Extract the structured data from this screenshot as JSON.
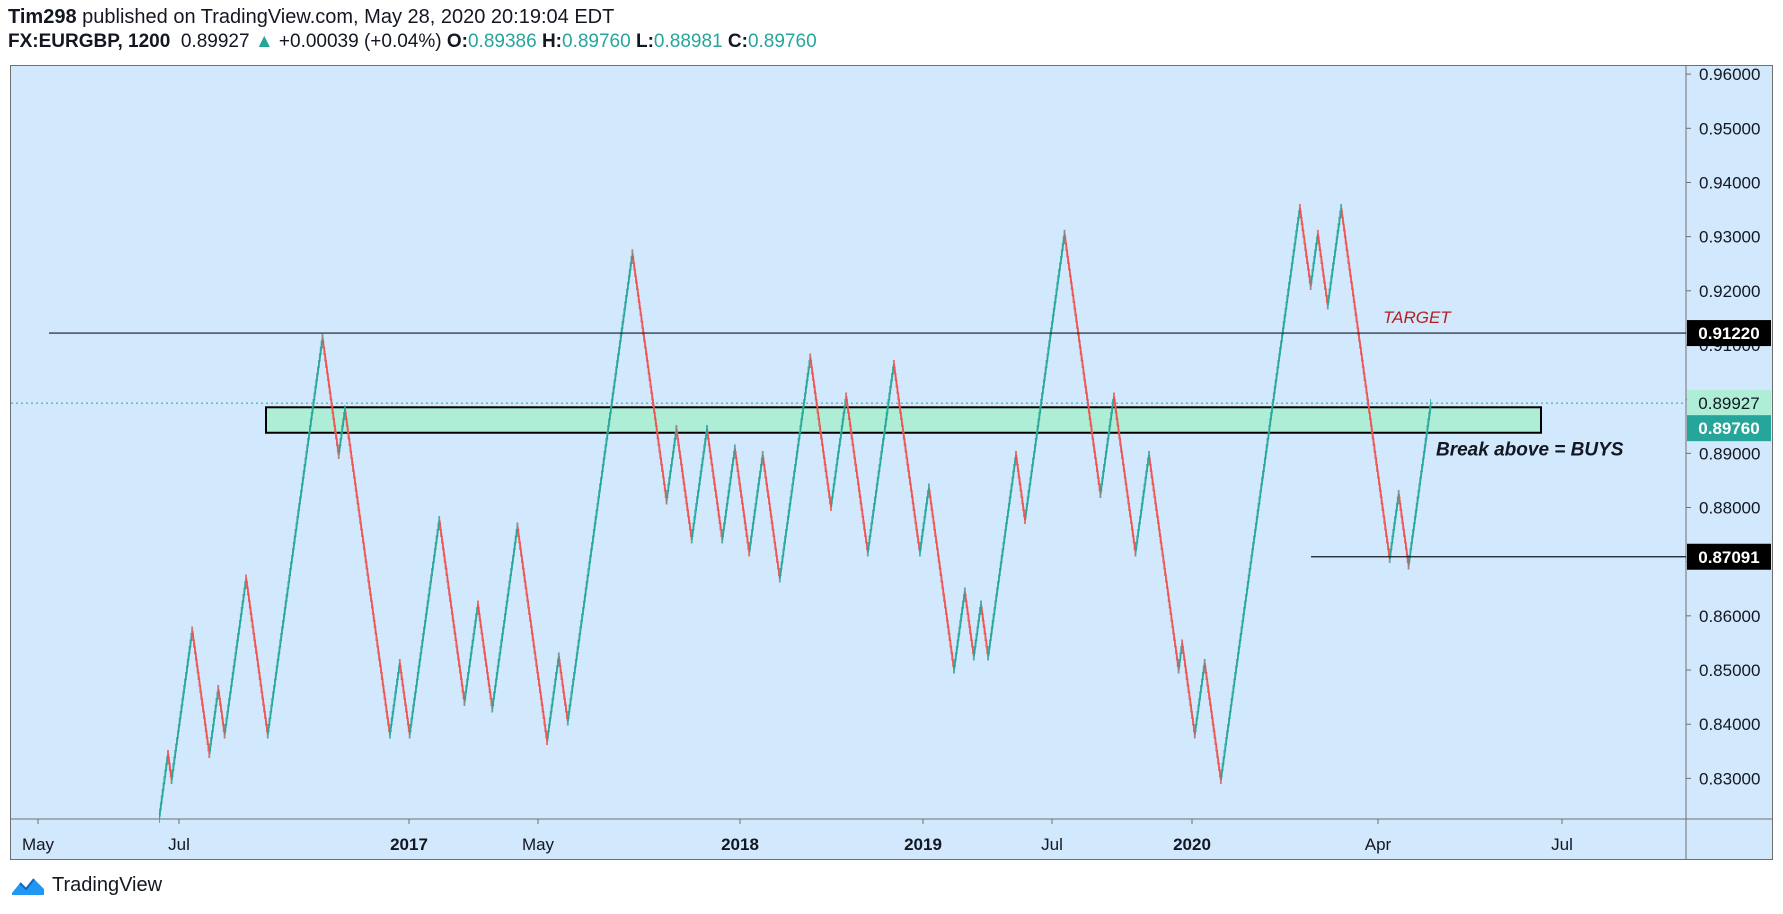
{
  "header": {
    "author": "Tim298",
    "published": " published on TradingView.com, May 28, 2020 20:19:04 EDT",
    "symbol": "FX:EURGBP, 1200",
    "last": "0.89927",
    "arrow": "▲",
    "change": "+0.00039 (+0.04%)",
    "open_label": "O:",
    "open": "0.89386",
    "high_label": "H:",
    "high": "0.89760",
    "low_label": "L:",
    "low": "0.88981",
    "close_label": "C:",
    "close": "0.89760"
  },
  "footer": {
    "brand": "TradingView",
    "logo_icon": "tradingview-logo-icon"
  },
  "colors": {
    "background": "#d2e8fc",
    "up": "#26a69a",
    "down": "#ef5350",
    "zone_fill": "#aeeed6",
    "line": "#131722",
    "target_text": "#b22222"
  },
  "chart_data": {
    "type": "renko",
    "symbol": "FX:EURGBP",
    "box_size": 0.0012,
    "ylim": [
      0.8225,
      0.9615
    ],
    "y_ticks": [
      "0.96000",
      "0.95000",
      "0.94000",
      "0.93000",
      "0.92000",
      "0.91000",
      "0.90000",
      "0.89000",
      "0.88000",
      "0.87000",
      "0.86000",
      "0.85000",
      "0.84000",
      "0.83000"
    ],
    "x_ticks": [
      {
        "label": "May",
        "bold": false
      },
      {
        "label": "Jul",
        "bold": false
      },
      {
        "label": "2017",
        "bold": true
      },
      {
        "label": "May",
        "bold": false
      },
      {
        "label": "2018",
        "bold": true
      },
      {
        "label": "2019",
        "bold": true
      },
      {
        "label": "Jul",
        "bold": false
      },
      {
        "label": "2020",
        "bold": true
      },
      {
        "label": "Apr",
        "bold": false
      },
      {
        "label": "Jul",
        "bold": false
      }
    ],
    "price_path": [
      0.8225,
      0.8345,
      0.8298,
      0.8575,
      0.834,
      0.846,
      0.838,
      0.867,
      0.8385,
      0.911,
      0.89,
      0.898,
      0.838,
      0.851,
      0.838,
      0.878,
      0.844,
      0.862,
      0.843,
      0.876,
      0.837,
      0.852,
      0.841,
      0.927,
      0.881,
      0.895,
      0.874,
      0.895,
      0.874,
      0.891,
      0.872,
      0.89,
      0.867,
      0.908,
      0.88,
      0.9,
      0.872,
      0.906,
      0.872,
      0.884,
      0.85,
      0.865,
      0.852,
      0.862,
      0.852,
      0.89,
      0.878,
      0.93,
      0.883,
      0.9,
      0.872,
      0.89,
      0.85,
      0.855,
      0.838,
      0.839,
      0.851,
      0.83,
      0.935,
      0.921,
      0.93,
      0.917,
      0.935,
      0.871,
      0.882,
      0.869,
      0.899
    ],
    "levels": [
      {
        "price": 0.9122,
        "label": "0.91220",
        "text": "TARGET"
      },
      {
        "price": 0.87091,
        "label": "0.87091",
        "text": ""
      }
    ],
    "zone": {
      "top": 0.8985,
      "bottom": 0.8938
    },
    "current_price": {
      "value": "0.89927",
      "close_label": "0.89760"
    },
    "annotation": "Break above = BUYS"
  }
}
